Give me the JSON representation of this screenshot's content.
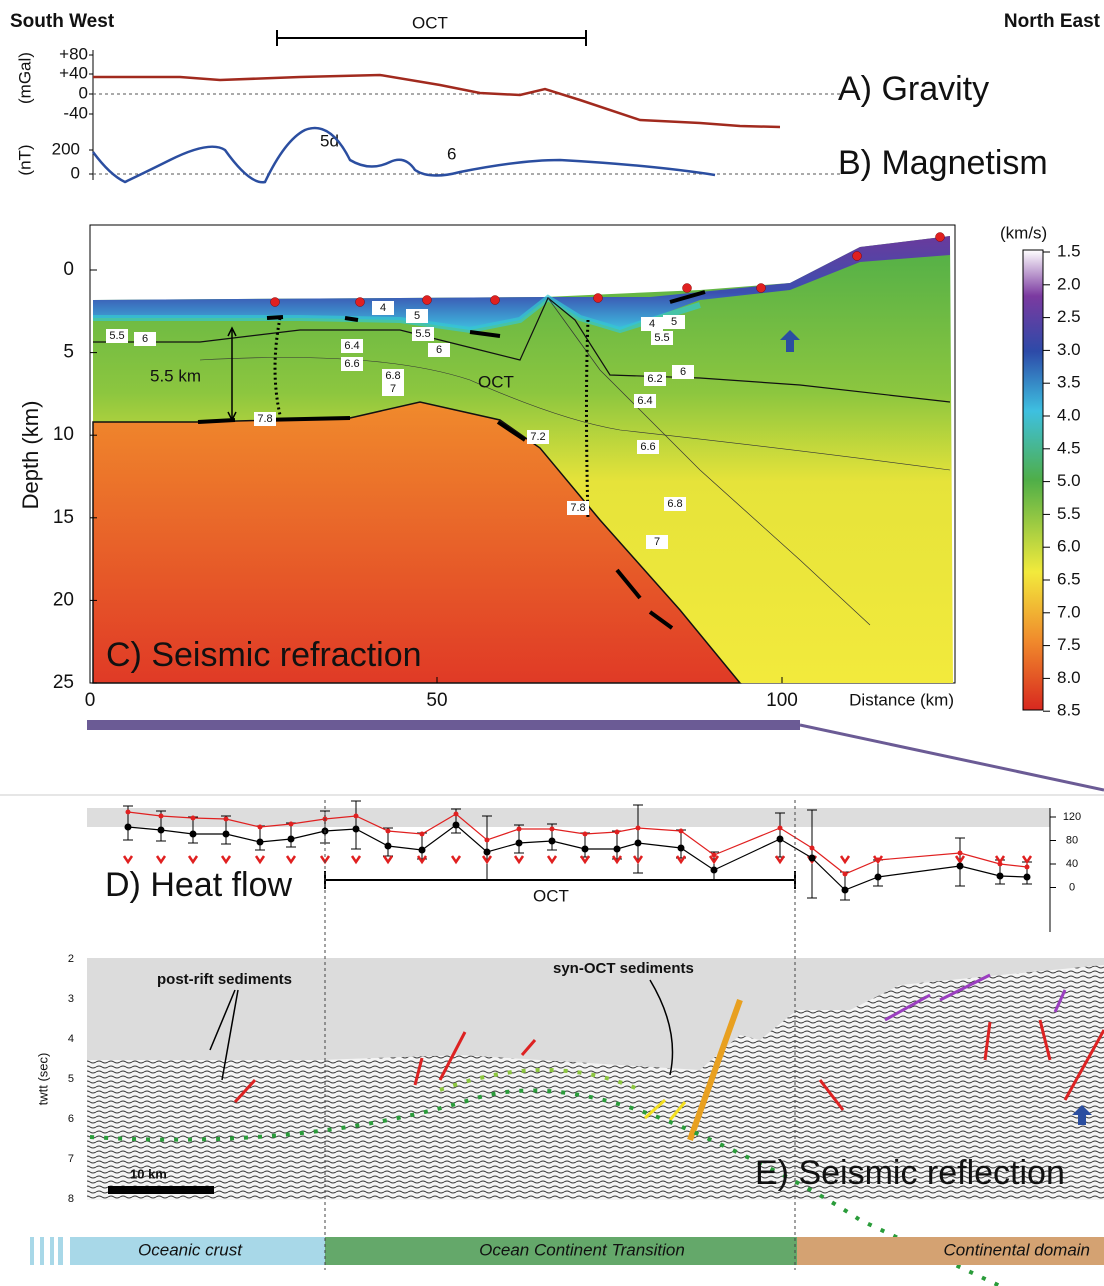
{
  "header": {
    "left": "South West",
    "right": "North East",
    "oct": "OCT"
  },
  "gravity": {
    "label": "A) Gravity",
    "unit": "(mGal)",
    "ticks": [
      "+80",
      "+40",
      "0",
      "-40"
    ]
  },
  "magnetism": {
    "label": "B) Magnetism",
    "unit": "(nT)",
    "ticks": [
      "200",
      "0"
    ],
    "anomalies": [
      "5d",
      "6"
    ]
  },
  "refraction": {
    "label": "C) Seismic refraction",
    "y_axis": "Depth (km)",
    "y_ticks": [
      "0",
      "5",
      "10",
      "15",
      "20",
      "25"
    ],
    "x_ticks": [
      "0",
      "50",
      "100"
    ],
    "x_axis": "Distance (km)",
    "annotations": [
      "5.5 km",
      "OCT"
    ],
    "contour_labels": [
      "5.5",
      "6",
      "4",
      "5",
      "5.5",
      "6",
      "6.4",
      "6.6",
      "6.8",
      "7",
      "7.8",
      "7.2",
      "7.8",
      "7",
      "4",
      "5",
      "5.5",
      "6.2",
      "6",
      "6.4",
      "6.6",
      "6.8"
    ]
  },
  "colorbar": {
    "unit": "(km/s)",
    "ticks": [
      "1.5",
      "2.0",
      "2.5",
      "3.0",
      "3.5",
      "4.0",
      "4.5",
      "5.0",
      "5.5",
      "6.0",
      "6.5",
      "7.0",
      "7.5",
      "8.0",
      "8.5"
    ]
  },
  "heat_flow": {
    "label": "D) Heat flow",
    "oct": "OCT",
    "ticks": [
      "120",
      "80",
      "40",
      "0"
    ]
  },
  "reflection": {
    "label": "E) Seismic reflection",
    "y_axis": "twtt (sec)",
    "y_ticks": [
      "2",
      "3",
      "4",
      "5",
      "6",
      "7",
      "8"
    ],
    "annotations": [
      "post-rift sediments",
      "syn-OCT sediments"
    ],
    "scale": "10 km"
  },
  "domains": [
    "Oceanic crust",
    "Ocean Continent Transition",
    "Continental domain"
  ]
}
